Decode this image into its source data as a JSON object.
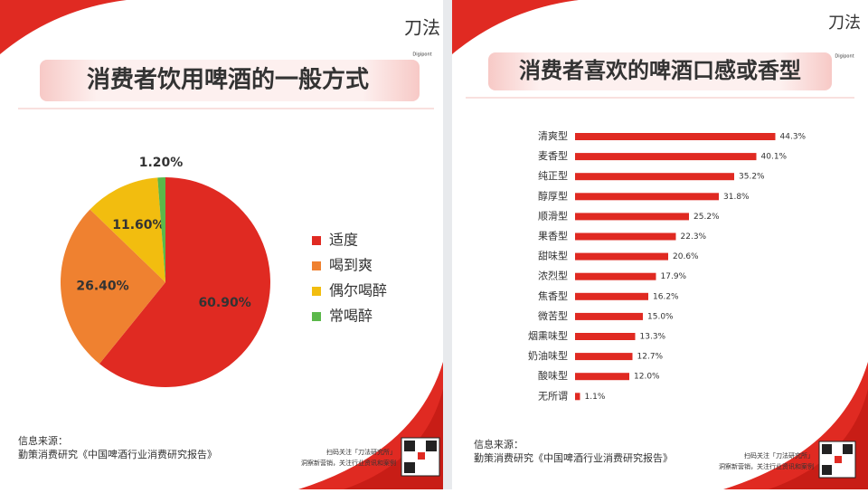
{
  "brand": "刀法",
  "brand_sub": "Digipont",
  "qr_caption": [
    "扫码关注「刀法研究所」",
    "洞察新营销，关注行业资讯和案例"
  ],
  "chart_data": [
    {
      "type": "pie",
      "title": "消费者饮用啤酒的一般方式",
      "categories": [
        "适度",
        "喝到爽",
        "偶尔喝醉",
        "常喝醉"
      ],
      "values": [
        60.9,
        26.4,
        11.6,
        1.2
      ],
      "value_labels": [
        "60.90%",
        "26.40%",
        "11.60%",
        "1.20%"
      ],
      "colors": [
        "#e02a22",
        "#ef8130",
        "#f2bd0f",
        "#5bb84a"
      ],
      "legend": "right",
      "source_label": "信息来源：",
      "source": "勤策消费研究《中国啤酒行业消费研究报告》"
    },
    {
      "type": "bar",
      "orientation": "horizontal",
      "title": "消费者喜欢的啤酒口感或香型",
      "categories": [
        "清爽型",
        "麦香型",
        "纯正型",
        "醇厚型",
        "顺滑型",
        "果香型",
        "甜味型",
        "浓烈型",
        "焦香型",
        "微苦型",
        "烟熏味型",
        "奶油味型",
        "酸味型",
        "无所谓"
      ],
      "values": [
        44.3,
        40.1,
        35.2,
        31.8,
        25.2,
        22.3,
        20.6,
        17.9,
        16.2,
        15.0,
        13.3,
        12.7,
        12.0,
        1.1
      ],
      "value_labels": [
        "44.3%",
        "40.1%",
        "35.2%",
        "31.8%",
        "25.2%",
        "22.3%",
        "20.6%",
        "17.9%",
        "16.2%",
        "15.0%",
        "13.3%",
        "12.7%",
        "12.0%",
        "1.1%"
      ],
      "color": "#e02a22",
      "xlim": [
        0,
        45
      ],
      "source_label": "信息来源：",
      "source": "勤策消费研究《中国啤酒行业消费研究报告》"
    }
  ]
}
